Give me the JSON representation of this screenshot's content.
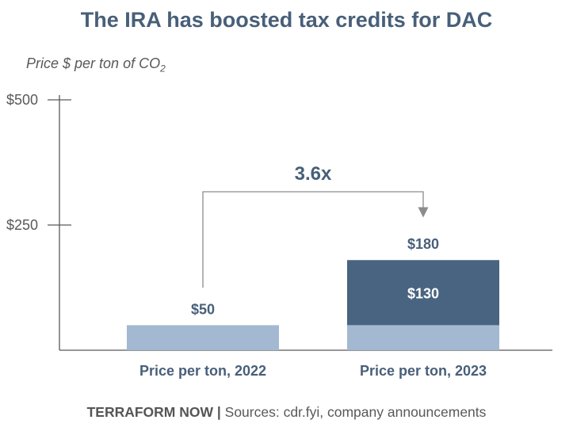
{
  "chart_data": {
    "type": "bar",
    "stacked": true,
    "title": "The IRA has boosted tax credits for DAC",
    "ylabel": "Price $ per ton of CO",
    "ylabel_sub": "2",
    "ylim": [
      0,
      500
    ],
    "yticks": [
      {
        "value": 500,
        "label": "$500"
      },
      {
        "value": 250,
        "label": "$250"
      }
    ],
    "categories": [
      "Price per ton, 2022",
      "Price per ton, 2023"
    ],
    "series": [
      {
        "values": [
          50,
          50
        ],
        "color": "#a3b8d1"
      },
      {
        "values": [
          0,
          130
        ],
        "color": "#486480",
        "labels": [
          "",
          "$130"
        ]
      }
    ],
    "totals": [
      "$50",
      "$180"
    ],
    "annotation": "3.6x",
    "grid": false
  },
  "footer": {
    "brand": "TERRAFORM NOW |",
    "sources": " Sources: cdr.fyi, company announcements"
  },
  "colors": {
    "title": "#485f79",
    "axis": "#595959",
    "bracket": "#8c8c8c"
  }
}
